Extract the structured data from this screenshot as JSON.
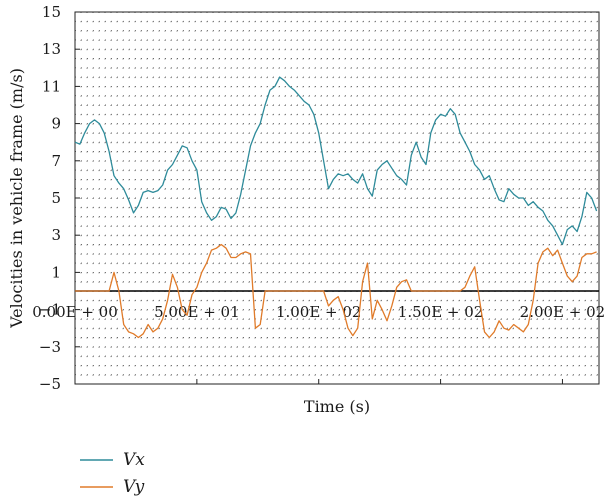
{
  "chart_data": {
    "type": "line",
    "xlabel": "Time (s)",
    "ylabel": "Velocities in vehicle frame (m/s)",
    "xlim": [
      0,
      215
    ],
    "ylim": [
      -5,
      15
    ],
    "x_ticks": [
      {
        "value": 0,
        "label": "0.00E + 00"
      },
      {
        "value": 50,
        "label": "5.00E + 01"
      },
      {
        "value": 100,
        "label": "1.00E + 02"
      },
      {
        "value": 150,
        "label": "1.50E + 02"
      },
      {
        "value": 200,
        "label": "2.00E + 02"
      }
    ],
    "y_ticks": [
      15,
      13,
      11,
      9,
      7,
      5,
      3,
      1,
      -1,
      -3,
      -5
    ],
    "grid": true,
    "grid_style": "dotted",
    "legend_position": "bottom-left",
    "series": [
      {
        "name": "Vx",
        "color": "#2e8b9a",
        "x": [
          0,
          2,
          4,
          6,
          8,
          10,
          12,
          14,
          16,
          18,
          20,
          22,
          24,
          26,
          28,
          30,
          32,
          34,
          36,
          38,
          40,
          42,
          44,
          46,
          48,
          50,
          52,
          54,
          56,
          58,
          60,
          62,
          64,
          66,
          68,
          70,
          72,
          74,
          76,
          78,
          80,
          82,
          84,
          86,
          88,
          90,
          92,
          94,
          96,
          98,
          100,
          102,
          104,
          106,
          108,
          110,
          112,
          114,
          116,
          118,
          120,
          122,
          124,
          126,
          128,
          130,
          132,
          134,
          136,
          138,
          140,
          142,
          144,
          146,
          148,
          150,
          152,
          154,
          156,
          158,
          160,
          162,
          164,
          166,
          168,
          170,
          172,
          174,
          176,
          178,
          180,
          182,
          184,
          186,
          188,
          190,
          192,
          194,
          196,
          198,
          200,
          202,
          204,
          206,
          208,
          210,
          212,
          214
        ],
        "values": [
          8.0,
          7.9,
          8.5,
          9.0,
          9.2,
          9.0,
          8.5,
          7.5,
          6.2,
          5.8,
          5.5,
          4.9,
          4.2,
          4.6,
          5.3,
          5.4,
          5.3,
          5.4,
          5.7,
          6.5,
          6.8,
          7.3,
          7.8,
          7.7,
          7.0,
          6.5,
          4.8,
          4.2,
          3.8,
          4.0,
          4.5,
          4.4,
          3.9,
          4.2,
          5.2,
          6.5,
          7.8,
          8.5,
          9.0,
          10.0,
          10.8,
          11.0,
          11.5,
          11.3,
          11.0,
          10.8,
          10.5,
          10.2,
          10.0,
          9.5,
          8.5,
          7.0,
          5.5,
          6.0,
          6.3,
          6.2,
          6.3,
          6.0,
          5.8,
          6.3,
          5.5,
          5.1,
          6.5,
          6.8,
          7.0,
          6.6,
          6.2,
          6.0,
          5.7,
          7.3,
          8.0,
          7.2,
          6.8,
          8.5,
          9.2,
          9.5,
          9.4,
          9.8,
          9.5,
          8.5,
          8.0,
          7.5,
          6.8,
          6.5,
          6.0,
          6.2,
          5.5,
          4.9,
          4.8,
          5.5,
          5.2,
          5.0,
          5.0,
          4.6,
          4.8,
          4.5,
          4.3,
          3.8,
          3.5,
          3.0,
          2.5,
          3.3,
          3.5,
          3.2,
          4.0,
          5.3,
          5.0,
          4.3
        ]
      },
      {
        "name": "Vy",
        "color": "#e07b2a",
        "x": [
          0,
          2,
          4,
          6,
          8,
          10,
          12,
          14,
          16,
          18,
          20,
          22,
          24,
          26,
          28,
          30,
          32,
          34,
          36,
          38,
          40,
          42,
          44,
          46,
          48,
          50,
          52,
          54,
          56,
          58,
          60,
          62,
          64,
          66,
          68,
          70,
          72,
          74,
          76,
          78,
          80,
          82,
          84,
          86,
          88,
          90,
          92,
          94,
          96,
          98,
          100,
          102,
          104,
          106,
          108,
          110,
          112,
          114,
          116,
          118,
          120,
          122,
          124,
          126,
          128,
          130,
          132,
          134,
          136,
          138,
          140,
          142,
          144,
          146,
          148,
          150,
          152,
          154,
          156,
          158,
          160,
          162,
          164,
          166,
          168,
          170,
          172,
          174,
          176,
          178,
          180,
          182,
          184,
          186,
          188,
          190,
          192,
          194,
          196,
          198,
          200,
          202,
          204,
          206,
          208,
          210,
          212,
          214
        ],
        "values": [
          0.0,
          0.0,
          0.0,
          0.0,
          0.0,
          0.0,
          0.0,
          0.0,
          1.0,
          0.0,
          -1.8,
          -2.2,
          -2.3,
          -2.5,
          -2.3,
          -1.8,
          -2.2,
          -2.0,
          -1.5,
          -0.5,
          0.9,
          0.2,
          -1.0,
          -1.3,
          -0.2,
          0.2,
          1.0,
          1.5,
          2.2,
          2.3,
          2.5,
          2.3,
          1.8,
          1.8,
          2.0,
          2.1,
          2.0,
          -2.0,
          -1.8,
          0.0,
          0.0,
          0.0,
          0.0,
          0.0,
          0.0,
          0.0,
          0.0,
          0.0,
          0.0,
          0.0,
          0.0,
          0.0,
          -0.8,
          -0.5,
          -0.3,
          -1.0,
          -2.0,
          -2.4,
          -2.0,
          0.5,
          1.5,
          -1.5,
          -0.5,
          -1.0,
          -1.6,
          -0.8,
          0.2,
          0.5,
          0.6,
          0.0,
          0.0,
          0.0,
          0.0,
          0.0,
          0.0,
          0.0,
          0.0,
          0.0,
          0.0,
          0.0,
          0.2,
          0.8,
          1.3,
          -0.5,
          -2.2,
          -2.5,
          -2.2,
          -1.6,
          -2.0,
          -2.1,
          -1.8,
          -2.0,
          -2.2,
          -1.8,
          -0.5,
          1.5,
          2.1,
          2.3,
          1.9,
          2.2,
          1.5,
          0.8,
          0.5,
          0.8,
          1.8,
          2.0,
          2.0,
          2.1
        ]
      }
    ]
  }
}
